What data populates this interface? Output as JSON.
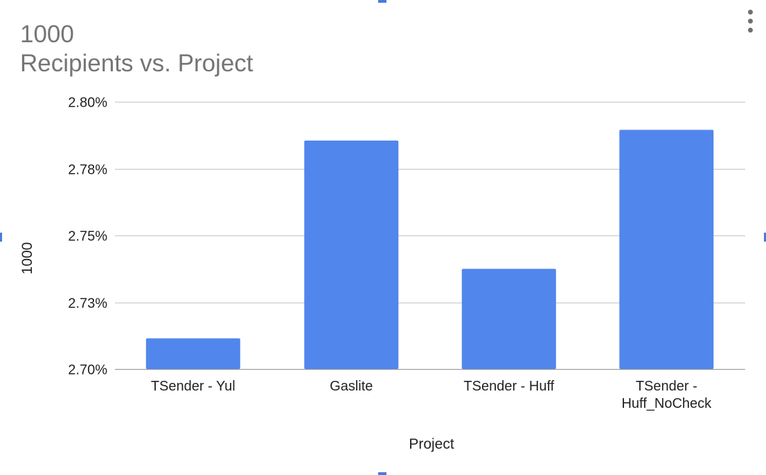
{
  "chart_data": {
    "type": "bar",
    "title": "1000",
    "subtitle": "Recipients vs. Project",
    "xlabel": "Project",
    "ylabel": "1000",
    "categories": [
      "TSender - Yul",
      "Gaslite",
      "TSender - Huff",
      "TSender - Huff_NoCheck"
    ],
    "series": [
      {
        "values": [
          2.7115,
          2.7855,
          2.7375,
          2.7895
        ],
        "color": "#5186ec"
      }
    ],
    "ylim": [
      2.7,
      2.8
    ],
    "yticks": [
      2.7,
      2.725,
      2.75,
      2.775,
      2.8
    ],
    "ytick_labels": [
      "2.70%",
      "2.73%",
      "2.75%",
      "2.78%",
      "2.80%"
    ],
    "grid": true,
    "legend": "none"
  },
  "ui": {
    "menu_icon": "more-vert-icon"
  }
}
